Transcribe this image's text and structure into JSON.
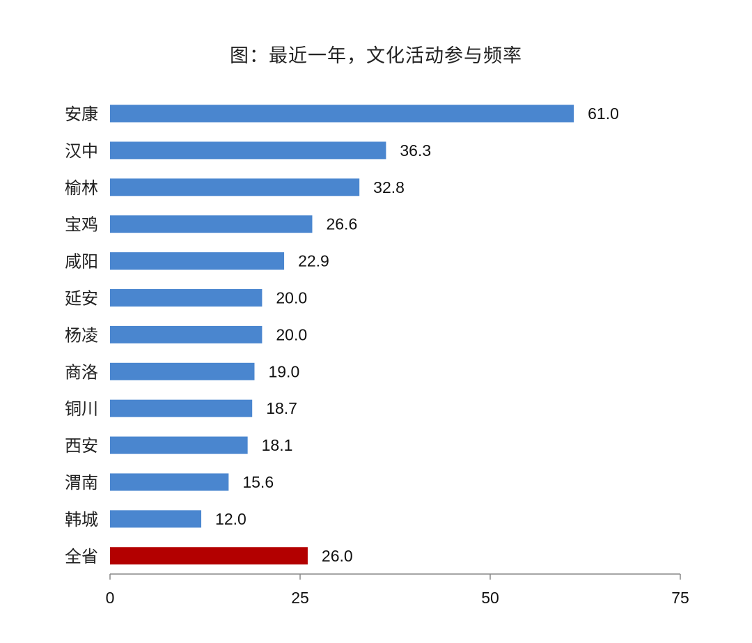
{
  "chart_data": {
    "type": "bar",
    "orientation": "horizontal",
    "title": "图：最近一年，文化活动参与频率",
    "categories": [
      "安康",
      "汉中",
      "榆林",
      "宝鸡",
      "咸阳",
      "延安",
      "杨凌",
      "商洛",
      "铜川",
      "西安",
      "渭南",
      "韩城",
      "全省"
    ],
    "values": [
      61.0,
      36.3,
      32.8,
      26.6,
      22.9,
      20.0,
      20.0,
      19.0,
      18.7,
      18.1,
      15.6,
      12.0,
      26.0
    ],
    "value_labels": [
      "61.0",
      "36.3",
      "32.8",
      "26.6",
      "22.9",
      "20.0",
      "20.0",
      "19.0",
      "18.7",
      "18.1",
      "15.6",
      "12.0",
      "26.0"
    ],
    "bar_colors": [
      "#4a86cf",
      "#4a86cf",
      "#4a86cf",
      "#4a86cf",
      "#4a86cf",
      "#4a86cf",
      "#4a86cf",
      "#4a86cf",
      "#4a86cf",
      "#4a86cf",
      "#4a86cf",
      "#4a86cf",
      "#b30000"
    ],
    "xlim": [
      0,
      75
    ],
    "xticks": [
      0,
      25,
      50,
      75
    ],
    "xtick_labels": [
      "0",
      "25",
      "50",
      "75"
    ],
    "xlabel": "",
    "ylabel": "",
    "grid": false,
    "legend": "none"
  }
}
